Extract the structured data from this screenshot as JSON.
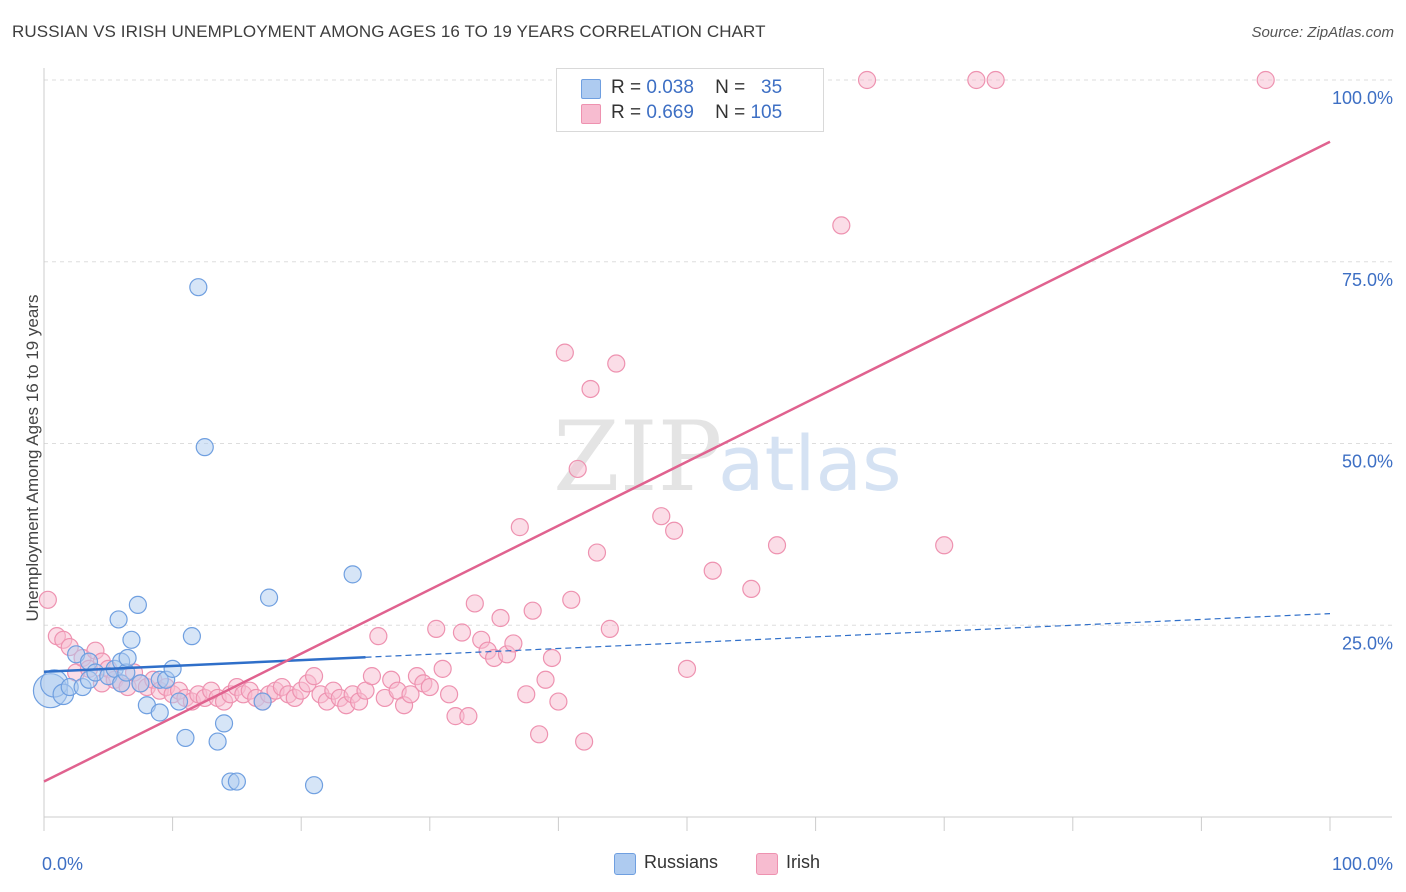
{
  "header": {
    "title": "RUSSIAN VS IRISH UNEMPLOYMENT AMONG AGES 16 TO 19 YEARS CORRELATION CHART",
    "source": "Source: ZipAtlas.com"
  },
  "watermark": {
    "zip": "ZIP",
    "atlas": "atlas"
  },
  "legend_top": {
    "rows": [
      {
        "r_label": "R =",
        "r_value": "0.038",
        "n_label": "N =",
        "n_value": "35"
      },
      {
        "r_label": "R =",
        "r_value": "0.669",
        "n_label": "N =",
        "n_value": "105"
      }
    ]
  },
  "legend_bottom": {
    "russians": "Russians",
    "irish": "Irish"
  },
  "colors": {
    "russians_fill": "#aecbf0",
    "russians_stroke": "#6f9fe0",
    "russians_line": "#2f6fc9",
    "irish_fill": "#f7bcd0",
    "irish_stroke": "#ee92b0",
    "irish_line": "#e0628f",
    "grid": "#dddddd",
    "axis_label": "#3d6fc4"
  },
  "chart_data": {
    "type": "scatter",
    "title": "RUSSIAN VS IRISH UNEMPLOYMENT AMONG AGES 16 TO 19 YEARS CORRELATION CHART",
    "xlabel": "",
    "ylabel": "Unemployment Among Ages 16 to 19 years",
    "xlim": [
      0,
      100
    ],
    "ylim": [
      0,
      100
    ],
    "x_tick_labels": [
      "0.0%",
      "100.0%"
    ],
    "y_tick_labels": [
      "25.0%",
      "50.0%",
      "75.0%",
      "100.0%"
    ],
    "grid": true,
    "legend_position": "top-center",
    "series": [
      {
        "name": "Russians",
        "R": 0.038,
        "N": 35,
        "trend": {
          "x": [
            0,
            100
          ],
          "y": [
            18.6,
            26.6
          ],
          "solid_until_x": 25
        },
        "points": [
          {
            "x": 0.5,
            "y": 16.0,
            "s": 2
          },
          {
            "x": 0.8,
            "y": 17.0,
            "s": 1.6
          },
          {
            "x": 1.5,
            "y": 15.5,
            "s": 1.2
          },
          {
            "x": 2.0,
            "y": 16.5,
            "s": 1
          },
          {
            "x": 2.5,
            "y": 21.0,
            "s": 1
          },
          {
            "x": 3.0,
            "y": 16.5,
            "s": 1
          },
          {
            "x": 3.5,
            "y": 17.5,
            "s": 1
          },
          {
            "x": 3.5,
            "y": 20.0,
            "s": 1
          },
          {
            "x": 4.0,
            "y": 18.5,
            "s": 1
          },
          {
            "x": 5.0,
            "y": 18.0,
            "s": 1
          },
          {
            "x": 5.5,
            "y": 19.0,
            "s": 1
          },
          {
            "x": 6.0,
            "y": 17.0,
            "s": 1
          },
          {
            "x": 6.0,
            "y": 20.0,
            "s": 1
          },
          {
            "x": 5.8,
            "y": 25.8,
            "s": 1
          },
          {
            "x": 6.4,
            "y": 18.5,
            "s": 1
          },
          {
            "x": 6.5,
            "y": 20.5,
            "s": 1
          },
          {
            "x": 6.8,
            "y": 23.0,
            "s": 1
          },
          {
            "x": 7.3,
            "y": 27.8,
            "s": 1
          },
          {
            "x": 7.5,
            "y": 17.0,
            "s": 1
          },
          {
            "x": 8.0,
            "y": 14.0,
            "s": 1
          },
          {
            "x": 9.0,
            "y": 17.5,
            "s": 1
          },
          {
            "x": 9.0,
            "y": 13.0,
            "s": 1
          },
          {
            "x": 9.5,
            "y": 17.5,
            "s": 1
          },
          {
            "x": 10.0,
            "y": 19.0,
            "s": 1
          },
          {
            "x": 10.5,
            "y": 14.5,
            "s": 1
          },
          {
            "x": 11.0,
            "y": 9.5,
            "s": 1
          },
          {
            "x": 11.5,
            "y": 23.5,
            "s": 1
          },
          {
            "x": 12.0,
            "y": 71.5,
            "s": 1
          },
          {
            "x": 12.5,
            "y": 49.5,
            "s": 1
          },
          {
            "x": 13.5,
            "y": 9.0,
            "s": 1
          },
          {
            "x": 14.0,
            "y": 11.5,
            "s": 1
          },
          {
            "x": 14.5,
            "y": 3.5,
            "s": 1
          },
          {
            "x": 15.0,
            "y": 3.5,
            "s": 1
          },
          {
            "x": 17.0,
            "y": 14.5,
            "s": 1
          },
          {
            "x": 17.5,
            "y": 28.8,
            "s": 1
          },
          {
            "x": 21.0,
            "y": 3.0,
            "s": 1
          },
          {
            "x": 24.0,
            "y": 32.0,
            "s": 1
          }
        ]
      },
      {
        "name": "Irish",
        "R": 0.669,
        "N": 105,
        "trend": {
          "x": [
            0,
            100
          ],
          "y": [
            3.5,
            91.5
          ]
        },
        "points": [
          {
            "x": 0.3,
            "y": 28.5
          },
          {
            "x": 1.0,
            "y": 23.5
          },
          {
            "x": 1.5,
            "y": 23.0
          },
          {
            "x": 2.0,
            "y": 22.0
          },
          {
            "x": 2.5,
            "y": 18.5
          },
          {
            "x": 3.0,
            "y": 20.5
          },
          {
            "x": 3.5,
            "y": 19.0
          },
          {
            "x": 4.0,
            "y": 21.5
          },
          {
            "x": 4.5,
            "y": 20.0
          },
          {
            "x": 4.5,
            "y": 17.0
          },
          {
            "x": 5.0,
            "y": 19.0
          },
          {
            "x": 5.5,
            "y": 17.5
          },
          {
            "x": 6.0,
            "y": 17.0
          },
          {
            "x": 6.5,
            "y": 16.5
          },
          {
            "x": 7.0,
            "y": 18.5
          },
          {
            "x": 7.5,
            "y": 17.0
          },
          {
            "x": 8.0,
            "y": 16.5
          },
          {
            "x": 8.5,
            "y": 17.5
          },
          {
            "x": 9.0,
            "y": 16.0
          },
          {
            "x": 9.5,
            "y": 16.5
          },
          {
            "x": 10.0,
            "y": 15.5
          },
          {
            "x": 10.5,
            "y": 16.0
          },
          {
            "x": 11.0,
            "y": 15.0
          },
          {
            "x": 11.5,
            "y": 14.5
          },
          {
            "x": 12.0,
            "y": 15.5
          },
          {
            "x": 12.5,
            "y": 15.0
          },
          {
            "x": 13.0,
            "y": 16.0
          },
          {
            "x": 13.5,
            "y": 15.0
          },
          {
            "x": 14.0,
            "y": 14.5
          },
          {
            "x": 14.5,
            "y": 15.5
          },
          {
            "x": 15.0,
            "y": 16.5
          },
          {
            "x": 15.5,
            "y": 15.5
          },
          {
            "x": 16.0,
            "y": 16.0
          },
          {
            "x": 16.5,
            "y": 15.0
          },
          {
            "x": 17.0,
            "y": 14.5
          },
          {
            "x": 17.5,
            "y": 15.5
          },
          {
            "x": 18.0,
            "y": 16.0
          },
          {
            "x": 18.5,
            "y": 16.5
          },
          {
            "x": 19.0,
            "y": 15.5
          },
          {
            "x": 19.5,
            "y": 15.0
          },
          {
            "x": 20.0,
            "y": 16.0
          },
          {
            "x": 20.5,
            "y": 17.0
          },
          {
            "x": 21.0,
            "y": 18.0
          },
          {
            "x": 21.5,
            "y": 15.5
          },
          {
            "x": 22.0,
            "y": 14.5
          },
          {
            "x": 22.5,
            "y": 16.0
          },
          {
            "x": 23.0,
            "y": 15.0
          },
          {
            "x": 23.5,
            "y": 14.0
          },
          {
            "x": 24.0,
            "y": 15.5
          },
          {
            "x": 24.5,
            "y": 14.5
          },
          {
            "x": 25.0,
            "y": 16.0
          },
          {
            "x": 25.5,
            "y": 18.0
          },
          {
            "x": 26.0,
            "y": 23.5
          },
          {
            "x": 26.5,
            "y": 15.0
          },
          {
            "x": 27.0,
            "y": 17.5
          },
          {
            "x": 27.5,
            "y": 16.0
          },
          {
            "x": 28.0,
            "y": 14.0
          },
          {
            "x": 28.5,
            "y": 15.5
          },
          {
            "x": 29.0,
            "y": 18.0
          },
          {
            "x": 29.5,
            "y": 17.0
          },
          {
            "x": 30.0,
            "y": 16.5
          },
          {
            "x": 30.5,
            "y": 24.5
          },
          {
            "x": 31.0,
            "y": 19.0
          },
          {
            "x": 31.5,
            "y": 15.5
          },
          {
            "x": 32.0,
            "y": 12.5
          },
          {
            "x": 32.5,
            "y": 24.0
          },
          {
            "x": 33.0,
            "y": 12.5
          },
          {
            "x": 33.5,
            "y": 28.0
          },
          {
            "x": 34.0,
            "y": 23.0
          },
          {
            "x": 34.5,
            "y": 21.5
          },
          {
            "x": 35.0,
            "y": 20.5
          },
          {
            "x": 35.5,
            "y": 26.0
          },
          {
            "x": 36.0,
            "y": 21.0
          },
          {
            "x": 36.5,
            "y": 22.5
          },
          {
            "x": 37.0,
            "y": 38.5
          },
          {
            "x": 37.5,
            "y": 15.5
          },
          {
            "x": 38.0,
            "y": 27.0
          },
          {
            "x": 38.5,
            "y": 10.0
          },
          {
            "x": 39.0,
            "y": 17.5
          },
          {
            "x": 39.5,
            "y": 20.5
          },
          {
            "x": 40.0,
            "y": 14.5
          },
          {
            "x": 40.5,
            "y": 62.5
          },
          {
            "x": 41.0,
            "y": 28.5
          },
          {
            "x": 41.5,
            "y": 46.5
          },
          {
            "x": 42.0,
            "y": 9.0
          },
          {
            "x": 42.5,
            "y": 57.5
          },
          {
            "x": 43.0,
            "y": 35.0
          },
          {
            "x": 44.0,
            "y": 24.5
          },
          {
            "x": 44.5,
            "y": 61.0
          },
          {
            "x": 48.0,
            "y": 40.0
          },
          {
            "x": 49.0,
            "y": 38.0
          },
          {
            "x": 50.0,
            "y": 19.0
          },
          {
            "x": 52.0,
            "y": 32.5
          },
          {
            "x": 55.0,
            "y": 30.0
          },
          {
            "x": 57.0,
            "y": 36.0
          },
          {
            "x": 62.0,
            "y": 80.0
          },
          {
            "x": 64.0,
            "y": 100.0
          },
          {
            "x": 70.0,
            "y": 36.0
          },
          {
            "x": 72.5,
            "y": 100.0
          },
          {
            "x": 74.0,
            "y": 100.0
          },
          {
            "x": 95.0,
            "y": 100.0
          },
          {
            "x": 47.5,
            "y": 100.0
          },
          {
            "x": 56.0,
            "y": 100.0
          }
        ]
      }
    ]
  }
}
